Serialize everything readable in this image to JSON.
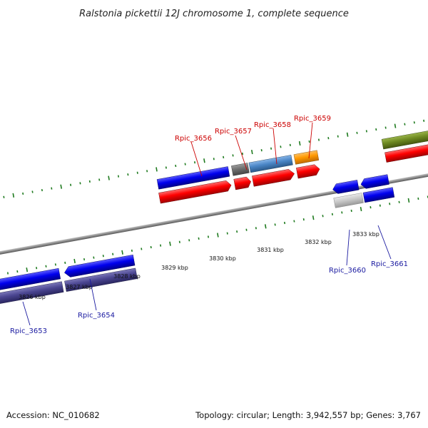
{
  "title": "Ralstonia pickettii 12J chromosome 1, complete sequence",
  "accession": "Accession: NC_010682",
  "topology": "Topology: circular; Length: 3,942,557 bp; Genes: 3,767",
  "ticks": [
    {
      "label": "3826 kbp"
    },
    {
      "label": "3827 kbp"
    },
    {
      "label": "3828 kbp"
    },
    {
      "label": "3829 kbp"
    },
    {
      "label": "3830 kbp"
    },
    {
      "label": "3831 kbp"
    },
    {
      "label": "3832 kbp"
    },
    {
      "label": "3833 kbp"
    }
  ],
  "gene_labels": [
    {
      "name": "Rpic_3653",
      "color": "#1a1aa0"
    },
    {
      "name": "Rpic_3654",
      "color": "#1a1aa0"
    },
    {
      "name": "Rpic_3656",
      "color": "#cc0000"
    },
    {
      "name": "Rpic_3657",
      "color": "#cc0000"
    },
    {
      "name": "Rpic_3658",
      "color": "#cc0000"
    },
    {
      "name": "Rpic_3659",
      "color": "#cc0000"
    },
    {
      "name": "Rpic_3660",
      "color": "#1a1aa0"
    },
    {
      "name": "Rpic_3661",
      "color": "#1a1aa0"
    }
  ],
  "colors": {
    "backbone": "#8c8c8c",
    "tick": "#1e7a1e",
    "forward_cds": "#ff0000",
    "reverse_cds": "#0000ee",
    "reverse_dark": "#4a4590",
    "gray_feature": "#6e6e6e",
    "steel_blue": "#4a86c6",
    "orange": "#ff9900",
    "olive": "#6e8a22",
    "light_gray": "#c8c8c8",
    "forward_label": "#cc0000",
    "reverse_label": "#1a1aa0"
  }
}
